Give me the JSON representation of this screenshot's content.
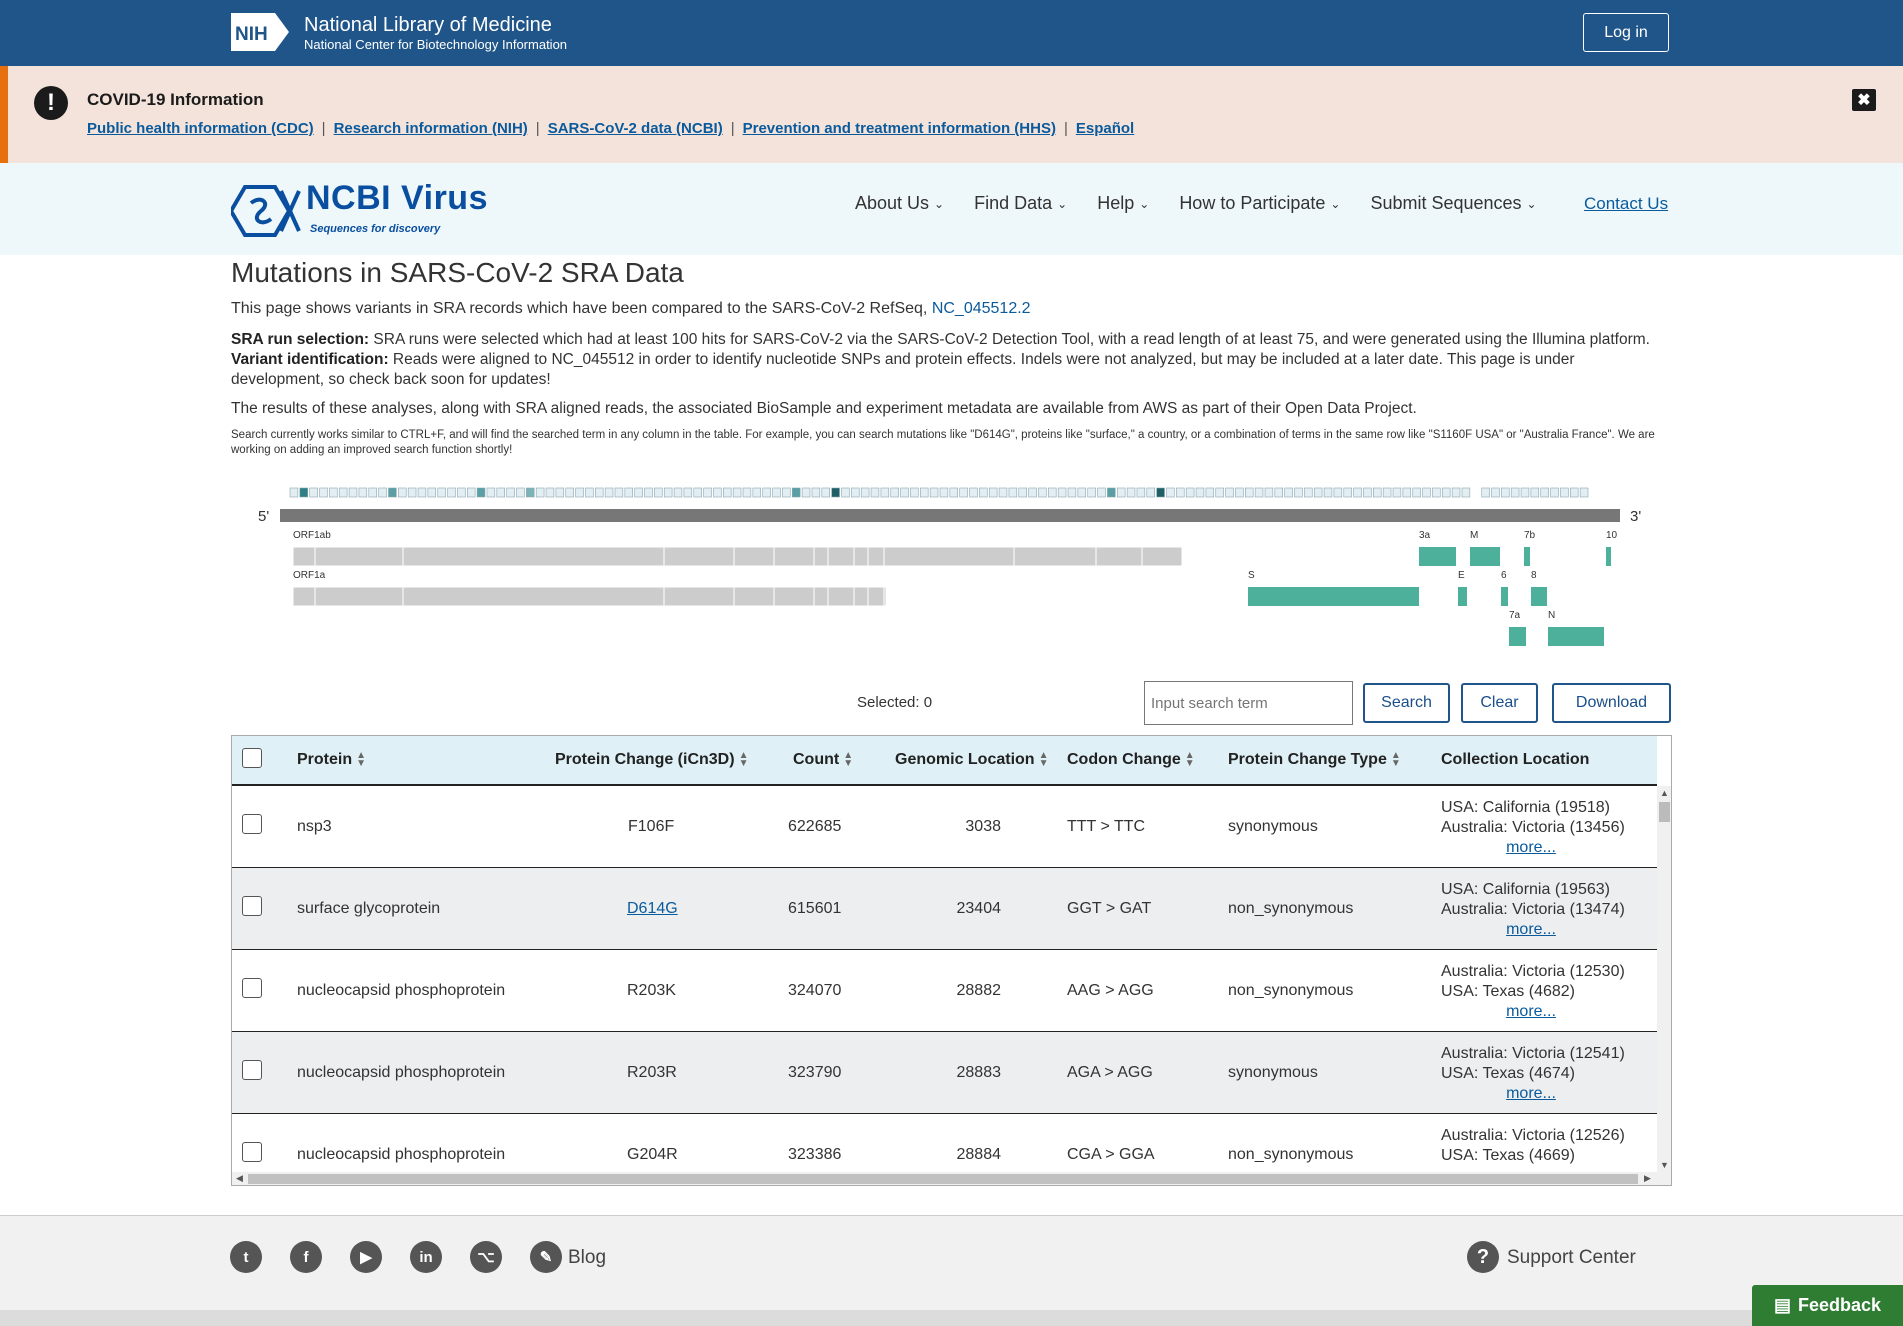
{
  "nih": {
    "title": "National Library of Medicine",
    "subtitle": "National Center for Biotechnology Information",
    "login": "Log in"
  },
  "covid": {
    "title": "COVID-19 Information",
    "links": [
      "Public health information (CDC)",
      "Research information (NIH)",
      "SARS-CoV-2 data (NCBI)",
      "Prevention and treatment information (HHS)",
      "Español"
    ]
  },
  "header": {
    "logo_text": "NCBI Virus",
    "tagline": "Sequences for discovery",
    "nav": [
      "About Us",
      "Find Data",
      "Help",
      "How to Participate",
      "Submit Sequences"
    ],
    "contact": "Contact Us"
  },
  "page": {
    "title": "Mutations in SARS-CoV-2 SRA Data",
    "intro": "This page shows variants in SRA records which have been compared to the SARS-CoV-2 RefSeq,",
    "refseq_link": "NC_045512.2",
    "sra_label": "SRA run selection:",
    "sra_text": "SRA runs were selected which had at least 100 hits for SARS-CoV-2 via the SARS-CoV-2 Detection Tool, with a read length of at least 75, and were generated using the Illumina platform.",
    "variant_label": "Variant identification:",
    "variant_text": "Reads were aligned to NC_045512 in order to identify nucleotide SNPs and protein effects. Indels were not analyzed, but may be included at a later date. This page is under development, so check back soon for updates!",
    "results_text": "The results of these analyses, along with SRA aligned reads, the associated BioSample and experiment metadata are available from AWS as part of their Open Data Project.",
    "search_note": "Search currently works similar to CTRL+F, and will find the searched term in any column in the table. For example, you can search mutations like \"D614G\", proteins like \"surface,\" a country, or a combination of terms in the same row like \"S1160F USA\" or \"Australia France\". We are working on adding an improved search function shortly!"
  },
  "genome": {
    "five_prime": "5'",
    "three_prime": "3'",
    "genes": [
      "ORF1ab",
      "ORF1a",
      "S",
      "3a",
      "E",
      "M",
      "6",
      "7a",
      "7b",
      "8",
      "N",
      "10"
    ]
  },
  "controls": {
    "selected": "Selected: 0",
    "search_placeholder": "Input search term",
    "search": "Search",
    "clear": "Clear",
    "download": "Download"
  },
  "table": {
    "headers": [
      "Protein",
      "Protein Change (iCn3D)",
      "Count",
      "Genomic Location",
      "Codon Change",
      "Protein Change Type",
      "Collection Location"
    ],
    "more": "more...",
    "rows": [
      {
        "protein": "nsp3",
        "change": "F106F",
        "count": "622685",
        "location": "3038",
        "codon": "TTT > TTC",
        "type": "synonymous",
        "loc1": "USA: California (19518)",
        "loc2": "Australia: Victoria (13456)"
      },
      {
        "protein": "surface glycoprotein",
        "change": "D614G",
        "count": "615601",
        "location": "23404",
        "codon": "GGT > GAT",
        "type": "non_synonymous",
        "loc1": "USA: California (19563)",
        "loc2": "Australia: Victoria (13474)"
      },
      {
        "protein": "nucleocapsid phosphoprotein",
        "change": "R203K",
        "count": "324070",
        "location": "28882",
        "codon": "AAG > AGG",
        "type": "non_synonymous",
        "loc1": "Australia: Victoria (12530)",
        "loc2": "USA: Texas (4682)"
      },
      {
        "protein": "nucleocapsid phosphoprotein",
        "change": "R203R",
        "count": "323790",
        "location": "28883",
        "codon": "AGA > AGG",
        "type": "synonymous",
        "loc1": "Australia: Victoria (12541)",
        "loc2": "USA: Texas (4674)"
      },
      {
        "protein": "nucleocapsid phosphoprotein",
        "change": "G204R",
        "count": "323386",
        "location": "28884",
        "codon": "CGA > GGA",
        "type": "non_synonymous",
        "loc1": "Australia: Victoria (12526)",
        "loc2": "USA: Texas (4669)"
      }
    ]
  },
  "footer": {
    "blog": "Blog",
    "support": "Support Center",
    "feedback": "Feedback"
  },
  "colors": {
    "nih_blue": "#20558a",
    "teal_gene": "#4db09a",
    "link": "#0a5a9c",
    "feedback_green": "#2e7d32"
  }
}
